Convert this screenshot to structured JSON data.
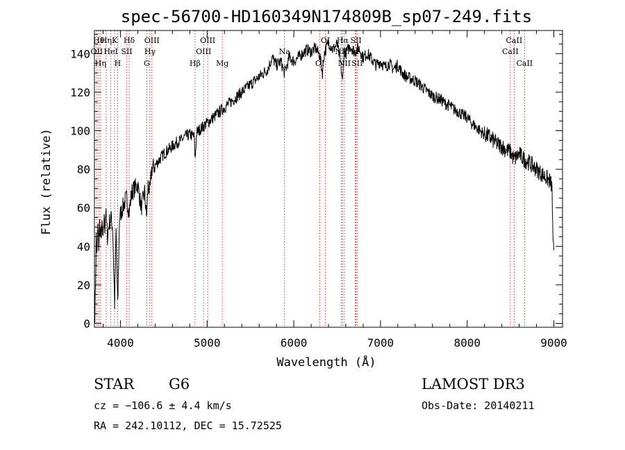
{
  "chart_data": {
    "type": "line",
    "title": "spec-56700-HD160349N174809B_sp07-249.fits",
    "xlabel": "Wavelength (Å)",
    "ylabel": "Flux (relative)",
    "xlim": [
      3700,
      9100
    ],
    "ylim": [
      -2,
      152
    ],
    "xticks": [
      {
        "value": 4000,
        "label": "4000"
      },
      {
        "value": 5000,
        "label": "5000"
      },
      {
        "value": 6000,
        "label": "6000"
      },
      {
        "value": 7000,
        "label": "7000"
      },
      {
        "value": 8000,
        "label": "8000"
      },
      {
        "value": 9000,
        "label": "9000"
      }
    ],
    "yticks": [
      {
        "value": 0,
        "label": "0"
      },
      {
        "value": 20,
        "label": "20"
      },
      {
        "value": 40,
        "label": "40"
      },
      {
        "value": 60,
        "label": "60"
      },
      {
        "value": 80,
        "label": "80"
      },
      {
        "value": 100,
        "label": "100"
      },
      {
        "value": 120,
        "label": "120"
      },
      {
        "value": 140,
        "label": "140"
      }
    ],
    "grid": false,
    "series": [
      {
        "color": "#000000",
        "x": [
          3705,
          3712,
          3720,
          3730,
          3740,
          3750,
          3760,
          3770,
          3780,
          3790,
          3800,
          3810,
          3820,
          3830,
          3850,
          3870,
          3890,
          3910,
          3933,
          3950,
          3968,
          3990,
          4010,
          4040,
          4070,
          4101,
          4130,
          4160,
          4200,
          4240,
          4280,
          4300,
          4320,
          4340,
          4360,
          4400,
          4450,
          4500,
          4550,
          4600,
          4650,
          4700,
          4750,
          4800,
          4850,
          4861,
          4880,
          4900,
          4950,
          5000,
          5050,
          5100,
          5150,
          5200,
          5250,
          5300,
          5350,
          5400,
          5450,
          5500,
          5550,
          5600,
          5650,
          5700,
          5750,
          5800,
          5850,
          5893,
          5950,
          6000,
          6050,
          6100,
          6150,
          6200,
          6250,
          6300,
          6330,
          6350,
          6400,
          6450,
          6500,
          6540,
          6563,
          6580,
          6600,
          6650,
          6700,
          6750,
          6800,
          6850,
          6900,
          6950,
          7000,
          7050,
          7100,
          7150,
          7200,
          7250,
          7300,
          7350,
          7400,
          7450,
          7500,
          7550,
          7600,
          7650,
          7700,
          7750,
          7800,
          7850,
          7900,
          7950,
          8000,
          8050,
          8100,
          8150,
          8200,
          8250,
          8300,
          8350,
          8400,
          8450,
          8500,
          8542,
          8560,
          8600,
          8662,
          8700,
          8750,
          8800,
          8850,
          8900,
          8950,
          8970,
          8980,
          8990,
          9000
        ],
        "y": [
          5,
          20,
          45,
          35,
          50,
          40,
          52,
          45,
          48,
          50,
          42,
          55,
          50,
          58,
          45,
          52,
          55,
          50,
          10,
          48,
          8,
          55,
          58,
          62,
          65,
          58,
          68,
          70,
          72,
          60,
          68,
          55,
          72,
          68,
          80,
          82,
          85,
          88,
          90,
          92,
          94,
          95,
          97,
          98,
          97,
          85,
          99,
          100,
          102,
          104,
          106,
          108,
          110,
          112,
          114,
          116,
          118,
          120,
          122,
          124,
          126,
          128,
          130,
          132,
          138,
          134,
          136,
          130,
          138,
          136,
          138,
          140,
          142,
          141,
          143,
          139,
          130,
          140,
          146,
          142,
          145,
          135,
          125,
          142,
          140,
          144,
          141,
          143,
          138,
          140,
          137,
          134,
          136,
          133,
          135,
          132,
          134,
          130,
          128,
          127,
          126,
          124,
          122,
          120,
          118,
          117,
          116,
          114,
          113,
          111,
          110,
          108,
          107,
          104,
          102,
          100,
          98,
          97,
          95,
          93,
          92,
          90,
          89,
          85,
          86,
          88,
          85,
          84,
          82,
          80,
          78,
          76,
          74,
          72,
          70,
          40,
          38
        ]
      }
    ],
    "line_marks": [
      {
        "x": 3750,
        "label": "Hθ",
        "row": 1
      },
      {
        "x": 3727,
        "label": "OII",
        "row": 2
      },
      {
        "x": 3771,
        "label": "Hη",
        "row": 3
      },
      {
        "x": 3835,
        "label": "Hη",
        "row": 1
      },
      {
        "x": 3889,
        "label": "HeI",
        "row": 2
      },
      {
        "x": 3933,
        "label": "K",
        "row": 1
      },
      {
        "x": 3968,
        "label": "H",
        "row": 3
      },
      {
        "x": 4072,
        "label": "SII",
        "row": 2
      },
      {
        "x": 4101,
        "label": "Hδ",
        "row": 1
      },
      {
        "x": 4340,
        "label": "Hγ",
        "row": 2
      },
      {
        "x": 4304,
        "label": "G",
        "row": 3
      },
      {
        "x": 4363,
        "label": "OIII",
        "row": 1
      },
      {
        "x": 4861,
        "label": "Hβ",
        "row": 3
      },
      {
        "x": 4959,
        "label": "OIII",
        "row": 2
      },
      {
        "x": 5007,
        "label": "OIII",
        "row": 1
      },
      {
        "x": 5175,
        "label": "Mg",
        "row": 3
      },
      {
        "x": 5893,
        "label": "Na",
        "row": 2
      },
      {
        "x": 6300,
        "label": "OI",
        "row": 3
      },
      {
        "x": 6364,
        "label": "OI",
        "row": 1
      },
      {
        "x": 6548,
        "label": "NII",
        "row": 2
      },
      {
        "x": 6563,
        "label": "Hα",
        "row": 1
      },
      {
        "x": 6584,
        "label": "NII",
        "row": 3
      },
      {
        "x": 6708,
        "label": "Li",
        "row": 2
      },
      {
        "x": 6717,
        "label": "SII",
        "row": 1
      },
      {
        "x": 6731,
        "label": "SII",
        "row": 3
      },
      {
        "x": 8498,
        "label": "CaII",
        "row": 2
      },
      {
        "x": 8542,
        "label": "CaII",
        "row": 1
      },
      {
        "x": 8662,
        "label": "CaII",
        "row": 3
      }
    ]
  },
  "info": {
    "object_class": "STAR",
    "subclass": "G6",
    "survey": "LAMOST DR3",
    "velocity": "cz = −106.6 ± 4.4 km/s",
    "obs_date": "Obs-Date: 20140211",
    "coords": "RA = 242.10112, DEC =  15.72525"
  }
}
